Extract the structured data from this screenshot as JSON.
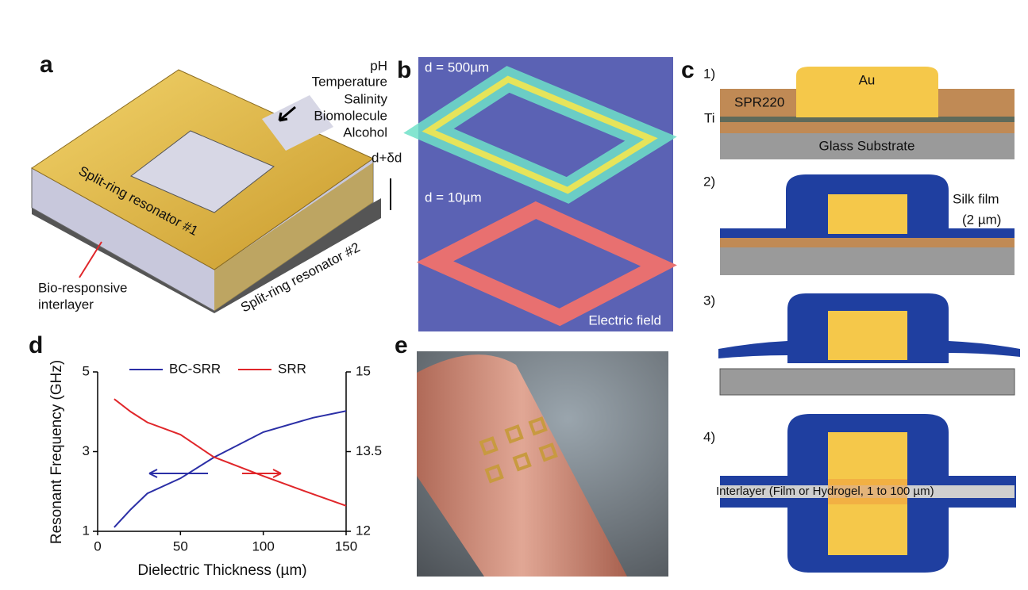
{
  "panel_a": {
    "label": "a",
    "stimuli": [
      "pH",
      "Temperature",
      "Salinity",
      "Biomolecule",
      "Alcohol"
    ],
    "gap": "d+δd",
    "top_ring": "Split-ring resonator #1",
    "bottom_ring": "Split-ring resonator #2",
    "interlayer": [
      "Bio-responsive",
      "interlayer"
    ]
  },
  "panel_b": {
    "label": "b",
    "top": "d = 500µm",
    "bottom": "d = 10µm",
    "caption": "Electric field"
  },
  "panel_c": {
    "label": "c",
    "steps": [
      "1)",
      "2)",
      "3)",
      "4)"
    ],
    "au": "Au",
    "resist": "SPR220",
    "ti": "Ti",
    "glass": "Glass Substrate",
    "silk": [
      "Silk film",
      "(2 µm)"
    ],
    "interlayer": "Interlayer (Film or Hydrogel, 1 to 100 µm)"
  },
  "panel_e": {
    "label": "e"
  },
  "chart_data": {
    "type": "line",
    "label": "d",
    "xlabel": "Dielectric Thickness (µm)",
    "ylabel": "Resonant Frequency (GHz)",
    "x": [
      10,
      20,
      30,
      50,
      70,
      100,
      130,
      150
    ],
    "series": [
      {
        "name": "BC-SRR",
        "color": "#2b2fa6",
        "axis": "y",
        "values": [
          1.1,
          1.55,
          1.95,
          2.33,
          2.85,
          3.49,
          3.85,
          4.02
        ]
      },
      {
        "name": "SRR",
        "color": "#e0262a",
        "axis": "y2",
        "values": [
          14.49,
          14.25,
          14.05,
          13.82,
          13.4,
          13.04,
          12.7,
          12.48
        ]
      }
    ],
    "xlim": [
      0,
      150
    ],
    "xticks": [
      0,
      50,
      100,
      150
    ],
    "ylim": [
      1,
      5
    ],
    "yticks": [
      1,
      3,
      5
    ],
    "y2lim": [
      12,
      15
    ],
    "y2ticks": [
      12,
      13.5,
      15
    ]
  }
}
